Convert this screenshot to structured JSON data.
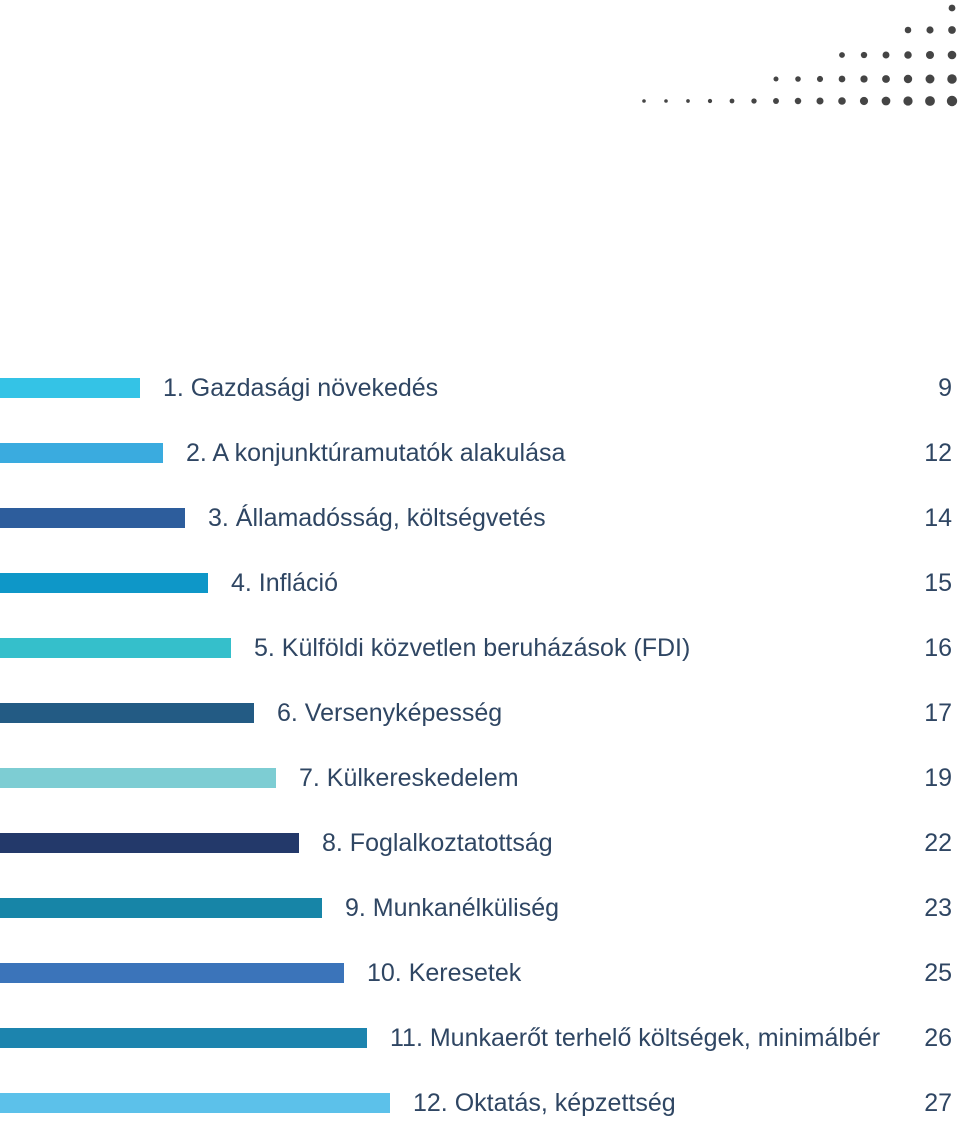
{
  "decoration": {
    "dot_color": "#454545",
    "icon": "dot-grid-decoration"
  },
  "toc": [
    {
      "label": "1. Gazdasági növekedés",
      "page": "9",
      "color": "#34c3e6"
    },
    {
      "label": "2. A konjunktúramutatók alakulása",
      "page": "12",
      "color": "#3aabdf"
    },
    {
      "label": "3. Államadósság, költségvetés",
      "page": "14",
      "color": "#2d5d9c"
    },
    {
      "label": "4. Infláció",
      "page": "15",
      "color": "#0e97c8"
    },
    {
      "label": "5. Külföldi közvetlen beruházások (FDI)",
      "page": "16",
      "color": "#35bfcb"
    },
    {
      "label": "6. Versenyképesség",
      "page": "17",
      "color": "#235b84"
    },
    {
      "label": "7. Külkereskedelem",
      "page": "19",
      "color": "#7dcdd3"
    },
    {
      "label": "8. Foglalkoztatottság",
      "page": "22",
      "color": "#23396a"
    },
    {
      "label": "9. Munkanélküliség",
      "page": "23",
      "color": "#1785a7"
    },
    {
      "label": "10. Keresetek",
      "page": "25",
      "color": "#3b74ba"
    },
    {
      "label": "11. Munkaerőt terhelő költségek, minimálbér",
      "page": "26",
      "color": "#1c84ae"
    },
    {
      "label": "12. Oktatás, képzettség",
      "page": "27",
      "color": "#5cc1ea"
    }
  ]
}
